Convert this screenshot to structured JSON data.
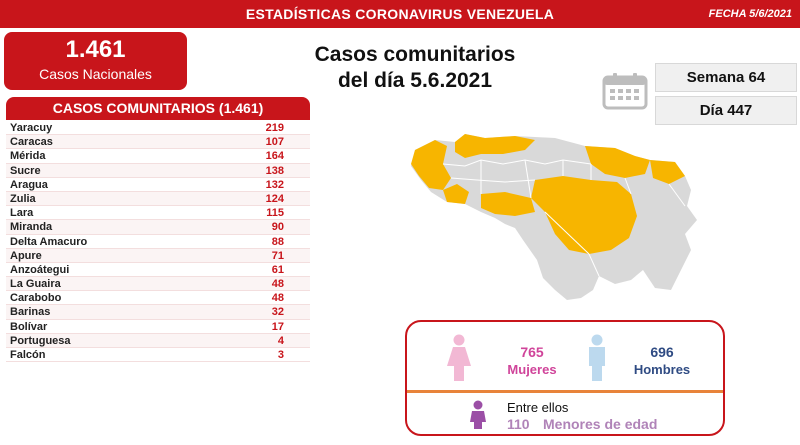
{
  "header": {
    "title": "ESTADÍSTICAS CORONAVIRUS VENEZUELA",
    "date": "FECHA 5/6/2021"
  },
  "national": {
    "total": "1.461",
    "label": "Casos Nacionales"
  },
  "headline": {
    "line1": "Casos comunitarios",
    "line2": "del día 5.6.2021"
  },
  "counters": {
    "week": "Semana 64",
    "day": "Día 447"
  },
  "table": {
    "title": "CASOS COMUNITARIOS (1.461)",
    "rows": [
      {
        "state": "Yaracuy",
        "cases": "219"
      },
      {
        "state": "Caracas",
        "cases": "107"
      },
      {
        "state": "Mérida",
        "cases": "164"
      },
      {
        "state": "Sucre",
        "cases": "138"
      },
      {
        "state": "Aragua",
        "cases": "132"
      },
      {
        "state": "Zulia",
        "cases": "124"
      },
      {
        "state": "Lara",
        "cases": "115"
      },
      {
        "state": "Miranda",
        "cases": "90"
      },
      {
        "state": "Delta Amacuro",
        "cases": "88"
      },
      {
        "state": "Apure",
        "cases": "71"
      },
      {
        "state": "Anzoátegui",
        "cases": "61"
      },
      {
        "state": "La Guaira",
        "cases": "48"
      },
      {
        "state": "Carabobo",
        "cases": "48"
      },
      {
        "state": "Barinas",
        "cases": "32"
      },
      {
        "state": "Bolívar",
        "cases": "17"
      },
      {
        "state": "Portuguesa",
        "cases": "4"
      },
      {
        "state": "Falcón",
        "cases": "3"
      }
    ]
  },
  "map": {
    "highlight_color": "#f7b500",
    "base_color": "#d9d9d9"
  },
  "gender": {
    "women_count": "765",
    "women_label": "Mujeres",
    "men_count": "696",
    "men_label": "Hombres",
    "kids_heading": "Entre ellos",
    "kids_count": "110",
    "kids_label": "Menores de edad"
  },
  "colors": {
    "brand_red": "#c8151b",
    "women": "#d0449a",
    "men": "#2f4b83",
    "kids": "#b083b8"
  }
}
